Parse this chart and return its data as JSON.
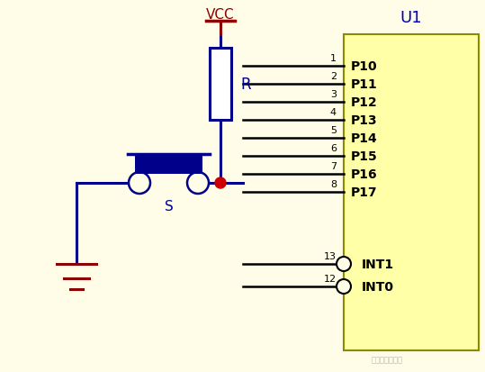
{
  "bg_color": "#FFFDE7",
  "wire_color": "#00008B",
  "dark_red": "#8B0000",
  "black": "#000000",
  "ic_edge_color": "#8B8B00",
  "ic_face_color": "#FFFFA8",
  "u1_color": "#0000CC",
  "junction_color": "#CC0000",
  "vcc_label": "VCC",
  "r_label": "R",
  "s_label": "S",
  "u1_label": "U1",
  "pin_nums": [
    1,
    2,
    3,
    4,
    5,
    6,
    7,
    8
  ],
  "pin_labels": [
    "P10",
    "P11",
    "P12",
    "P13",
    "P14",
    "P15",
    "P16",
    "P17"
  ],
  "int_nums": [
    13,
    12
  ],
  "int_labels": [
    "INT1",
    "INT0"
  ]
}
